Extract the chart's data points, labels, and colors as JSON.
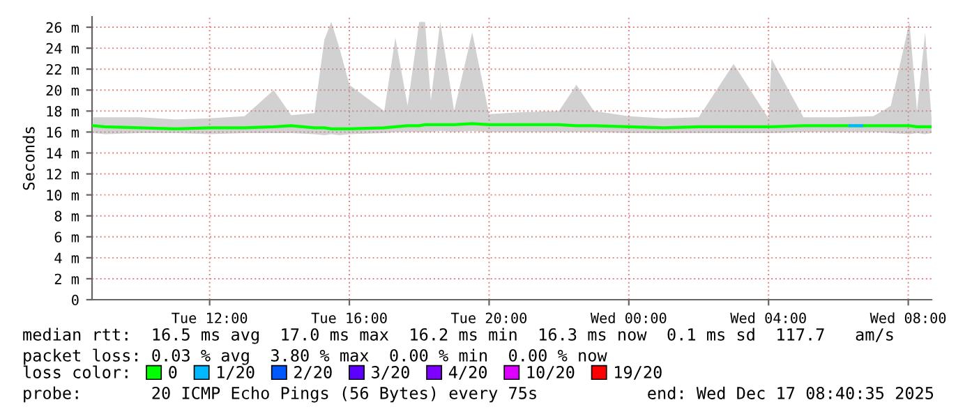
{
  "chart_data": {
    "type": "line",
    "ylabel": "Seconds",
    "legend_title": "loss color:",
    "legend": "bottom",
    "grid": true,
    "marker": "none",
    "line_style": "solid",
    "xlim": [
      "2025-12-16T08:38",
      "2025-12-17T08:40"
    ],
    "xticks": [
      {
        "value": "2025-12-16T12:00",
        "label": "Tue 12:00"
      },
      {
        "value": "2025-12-16T16:00",
        "label": "Tue 16:00"
      },
      {
        "value": "2025-12-16T20:00",
        "label": "Tue 20:00"
      },
      {
        "value": "2025-12-17T00:00",
        "label": "Wed 00:00"
      },
      {
        "value": "2025-12-17T04:00",
        "label": "Wed 04:00"
      },
      {
        "value": "2025-12-17T08:00",
        "label": "Wed 08:00"
      }
    ],
    "ylim": [
      0,
      27
    ],
    "yticks": [
      0,
      {
        "value": 2,
        "label": "2 m"
      },
      {
        "value": 4,
        "label": "4 m"
      },
      {
        "value": 6,
        "label": "6 m"
      },
      {
        "value": 8,
        "label": "8 m"
      },
      {
        "value": 10,
        "label": "10 m"
      },
      {
        "value": 12,
        "label": "12 m"
      },
      {
        "value": 14,
        "label": "14 m"
      },
      {
        "value": 16,
        "label": "16 m"
      },
      {
        "value": 18,
        "label": "18 m"
      },
      {
        "value": 20,
        "label": "20 m"
      },
      {
        "value": 22,
        "label": "22 m"
      },
      {
        "value": 24,
        "label": "24 m"
      },
      {
        "value": 26,
        "label": "26 m"
      }
    ],
    "x": [
      "2025-12-16T08:40",
      "2025-12-16T09:00",
      "2025-12-16T10:00",
      "2025-12-16T11:00",
      "2025-12-16T12:00",
      "2025-12-16T13:00",
      "2025-12-16T13:50",
      "2025-12-16T14:20",
      "2025-12-16T15:00",
      "2025-12-16T15:17",
      "2025-12-16T15:29",
      "2025-12-16T15:43",
      "2025-12-16T16:00",
      "2025-12-16T17:00",
      "2025-12-16T17:19",
      "2025-12-16T17:40",
      "2025-12-16T18:00",
      "2025-12-16T18:10",
      "2025-12-16T18:20",
      "2025-12-16T18:36",
      "2025-12-16T19:00",
      "2025-12-16T19:31",
      "2025-12-16T20:00",
      "2025-12-16T21:00",
      "2025-12-16T22:00",
      "2025-12-16T22:30",
      "2025-12-16T23:00",
      "2025-12-17T00:00",
      "2025-12-17T01:00",
      "2025-12-17T02:00",
      "2025-12-17T03:00",
      "2025-12-17T04:00",
      "2025-12-17T04:05",
      "2025-12-17T05:00",
      "2025-12-17T06:00",
      "2025-12-17T07:00",
      "2025-12-17T07:30",
      "2025-12-17T08:02",
      "2025-12-17T08:15",
      "2025-12-17T08:29",
      "2025-12-17T08:40"
    ],
    "series": [
      {
        "name": "0",
        "color": "#00ff00",
        "values": [
          16.6,
          16.5,
          16.4,
          16.3,
          16.4,
          16.4,
          16.5,
          16.6,
          16.4,
          16.4,
          16.3,
          16.3,
          16.3,
          16.4,
          16.5,
          16.6,
          16.6,
          16.7,
          16.7,
          16.7,
          16.7,
          16.8,
          16.7,
          16.7,
          16.7,
          16.6,
          16.6,
          16.5,
          16.4,
          16.5,
          16.5,
          16.5,
          16.5,
          16.6,
          16.6,
          16.6,
          16.6,
          16.6,
          16.5,
          16.5,
          16.5
        ],
        "lower": [
          15.9,
          15.8,
          15.9,
          15.9,
          15.8,
          15.9,
          15.9,
          15.9,
          15.8,
          15.7,
          15.8,
          15.7,
          15.8,
          15.9,
          16.0,
          16.0,
          16.0,
          16.0,
          16.0,
          16.1,
          16.0,
          16.1,
          16.0,
          16.0,
          16.0,
          16.0,
          16.0,
          15.9,
          15.9,
          15.9,
          15.9,
          15.9,
          15.9,
          16.0,
          16.0,
          16.0,
          15.9,
          15.8,
          15.9,
          15.8,
          15.9
        ],
        "upper": [
          17.4,
          17.4,
          17.4,
          17.2,
          17.3,
          17.5,
          20.0,
          17.6,
          17.8,
          24.8,
          26.5,
          24.0,
          20.5,
          18.0,
          25.0,
          18.5,
          26.5,
          26.5,
          19.0,
          26.5,
          18.0,
          25.5,
          17.7,
          17.9,
          18.0,
          20.5,
          18.0,
          17.5,
          17.3,
          17.4,
          22.5,
          17.3,
          23.0,
          17.4,
          17.4,
          17.5,
          18.5,
          26.5,
          18.0,
          25.5,
          17.3
        ]
      },
      {
        "name": "1/20",
        "color": "#00b8ff",
        "x": [
          "2025-12-17T06:20",
          "2025-12-17T06:40"
        ],
        "values": [
          16.6,
          16.6
        ]
      },
      {
        "name": "2/20",
        "color": "#0059ff",
        "values": [
          null,
          null,
          null,
          null,
          null,
          null,
          null,
          null,
          null,
          null,
          null,
          null,
          null,
          null,
          null,
          null,
          null,
          null,
          null,
          null,
          null,
          null,
          null,
          null,
          null,
          null,
          null,
          null,
          null,
          null,
          null,
          null,
          null,
          null,
          null,
          null,
          null,
          null,
          null,
          null,
          null
        ]
      },
      {
        "name": "3/20",
        "color": "#5e00ff",
        "values": [
          null,
          null,
          null,
          null,
          null,
          null,
          null,
          null,
          null,
          null,
          null,
          null,
          null,
          null,
          null,
          null,
          null,
          null,
          null,
          null,
          null,
          null,
          null,
          null,
          null,
          null,
          null,
          null,
          null,
          null,
          null,
          null,
          null,
          null,
          null,
          null,
          null,
          null,
          null,
          null,
          null
        ]
      },
      {
        "name": "4/20",
        "color": "#7e00ff",
        "values": [
          null,
          null,
          null,
          null,
          null,
          null,
          null,
          null,
          null,
          null,
          null,
          null,
          null,
          null,
          null,
          null,
          null,
          null,
          null,
          null,
          null,
          null,
          null,
          null,
          null,
          null,
          null,
          null,
          null,
          null,
          null,
          null,
          null,
          null,
          null,
          null,
          null,
          null,
          null,
          null,
          null
        ]
      },
      {
        "name": "10/20",
        "color": "#dd00ff",
        "values": [
          null,
          null,
          null,
          null,
          null,
          null,
          null,
          null,
          null,
          null,
          null,
          null,
          null,
          null,
          null,
          null,
          null,
          null,
          null,
          null,
          null,
          null,
          null,
          null,
          null,
          null,
          null,
          null,
          null,
          null,
          null,
          null,
          null,
          null,
          null,
          null,
          null,
          null,
          null,
          null,
          null
        ]
      },
      {
        "name": "19/20",
        "color": "#ff0000",
        "values": [
          null,
          null,
          null,
          null,
          null,
          null,
          null,
          null,
          null,
          null,
          null,
          null,
          null,
          null,
          null,
          null,
          null,
          null,
          null,
          null,
          null,
          null,
          null,
          null,
          null,
          null,
          null,
          null,
          null,
          null,
          null,
          null,
          null,
          null,
          null,
          null,
          null,
          null,
          null,
          null,
          null
        ]
      }
    ],
    "annotations": [
      "median rtt:  16.5 ms avg  17.0 ms max  16.2 ms min  16.3 ms now  0.1 ms sd  117.7   am/s",
      "packet loss: 0.03 % avg  3.80 % max  0.00 % min  0.00 % now",
      "probe:       20 ICMP Echo Pings (56 Bytes) every 75s",
      "end: Wed Dec 17 08:40:35 2025"
    ]
  }
}
